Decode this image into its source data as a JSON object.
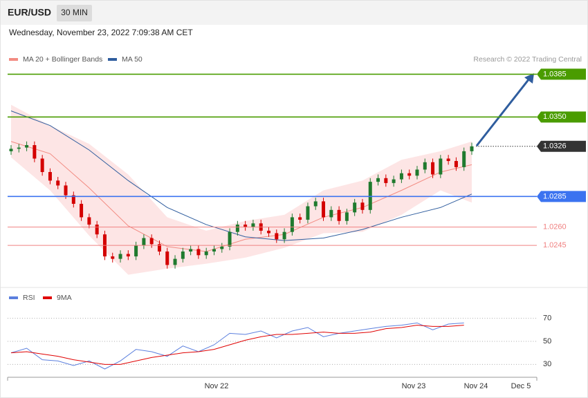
{
  "chart_data": {
    "type": "candlestick",
    "title": "EUR/USD",
    "interval": "30 MIN",
    "timestamp": "Wednesday, November 23, 2022 7:09:38 AM CET",
    "source": "Research © 2022 Trading Central",
    "ylim": [
      1.0214,
      1.0392
    ],
    "up_color": "#1f7a2e",
    "down_color": "#d40000",
    "open": [
      1.0322,
      1.0324,
      1.0325,
      1.0327,
      1.0316,
      1.0305,
      1.0298,
      1.0294,
      1.0286,
      1.0279,
      1.0268,
      1.0262,
      1.0254,
      1.0236,
      1.0234,
      1.0238,
      1.0236,
      1.0245,
      1.0251,
      1.0246,
      1.024,
      1.0229,
      1.0234,
      1.024,
      1.0242,
      1.0237,
      1.024,
      1.0242,
      1.0244,
      1.0256,
      1.0262,
      1.026,
      1.0263,
      1.0257,
      1.0255,
      1.025,
      1.0256,
      1.0268,
      1.0266,
      1.0277,
      1.0281,
      1.0268,
      1.0274,
      1.0265,
      1.0272,
      1.028,
      1.0274,
      1.0297,
      1.03,
      1.0296,
      1.0299,
      1.0304,
      1.0302,
      1.0307,
      1.0313,
      1.0303,
      1.0316,
      1.0314,
      1.0309,
      1.0322
    ],
    "high": [
      1.0327,
      1.0328,
      1.033,
      1.033,
      1.0319,
      1.0308,
      1.0301,
      1.0297,
      1.0289,
      1.0282,
      1.0271,
      1.0265,
      1.0257,
      1.0239,
      1.0241,
      1.0241,
      1.0248,
      1.0254,
      1.0254,
      1.0249,
      1.0243,
      1.0237,
      1.0243,
      1.0245,
      1.0245,
      1.0243,
      1.0245,
      1.0247,
      1.0259,
      1.0265,
      1.0265,
      1.0266,
      1.0266,
      1.026,
      1.0258,
      1.0259,
      1.0271,
      1.0271,
      1.028,
      1.0284,
      1.0284,
      1.0277,
      1.0277,
      1.0275,
      1.0283,
      1.0283,
      1.03,
      1.0303,
      1.0303,
      1.0302,
      1.0307,
      1.0307,
      1.031,
      1.0316,
      1.0316,
      1.0319,
      1.0319,
      1.0317,
      1.0325,
      1.0329
    ],
    "low": [
      1.0319,
      1.0321,
      1.0322,
      1.0313,
      1.0302,
      1.0295,
      1.0291,
      1.0283,
      1.0276,
      1.0265,
      1.0259,
      1.0251,
      1.0233,
      1.0231,
      1.0231,
      1.0233,
      1.0233,
      1.0242,
      1.0243,
      1.0237,
      1.0226,
      1.0226,
      1.0231,
      1.0237,
      1.0234,
      1.0234,
      1.0237,
      1.0239,
      1.0241,
      1.0253,
      1.0257,
      1.0257,
      1.0254,
      1.0252,
      1.0247,
      1.0247,
      1.0253,
      1.0263,
      1.0263,
      1.0274,
      1.0265,
      1.0265,
      1.0262,
      1.0262,
      1.0269,
      1.0271,
      1.0271,
      1.0294,
      1.0293,
      1.0293,
      1.0296,
      1.0299,
      1.0299,
      1.0304,
      1.03,
      1.03,
      1.0311,
      1.0306,
      1.0306,
      1.0319
    ],
    "close": [
      1.0324,
      1.0325,
      1.0327,
      1.0316,
      1.0305,
      1.0298,
      1.0294,
      1.0286,
      1.0279,
      1.0268,
      1.0262,
      1.0254,
      1.0236,
      1.0234,
      1.0238,
      1.0236,
      1.0245,
      1.0251,
      1.0246,
      1.024,
      1.0229,
      1.0234,
      1.024,
      1.0242,
      1.0237,
      1.024,
      1.0242,
      1.0244,
      1.0256,
      1.0262,
      1.026,
      1.0263,
      1.0257,
      1.0255,
      1.025,
      1.0256,
      1.0268,
      1.0266,
      1.0277,
      1.0281,
      1.0268,
      1.0274,
      1.0265,
      1.0272,
      1.028,
      1.0274,
      1.0297,
      1.03,
      1.0296,
      1.0299,
      1.0304,
      1.0302,
      1.0307,
      1.0313,
      1.0303,
      1.0316,
      1.0314,
      1.0309,
      1.0322,
      1.0326
    ],
    "overlays": {
      "legend": [
        {
          "name": "MA 20 + Bollinger Bands",
          "color": "#f28b82"
        },
        {
          "name": "MA 50",
          "color": "#2f5d9e"
        }
      ],
      "x": [
        0,
        5,
        10,
        15,
        20,
        25,
        30,
        35,
        40,
        45,
        50,
        55,
        59
      ],
      "upper": [
        1.036,
        1.0343,
        1.0328,
        1.0303,
        1.0268,
        1.0257,
        1.0265,
        1.027,
        1.029,
        1.0298,
        1.0315,
        1.0322,
        1.033
      ],
      "lower": [
        1.0317,
        1.029,
        1.0253,
        1.0221,
        1.0226,
        1.023,
        1.0235,
        1.0243,
        1.0255,
        1.0256,
        1.027,
        1.029,
        1.028
      ],
      "ma20": [
        1.033,
        1.032,
        1.0292,
        1.0261,
        1.0244,
        1.024,
        1.025,
        1.0254,
        1.0268,
        1.0276,
        1.029,
        1.0305,
        1.0311
      ],
      "ma50": [
        1.0355,
        1.0343,
        1.0323,
        1.0298,
        1.0276,
        1.0262,
        1.0252,
        1.0249,
        1.0251,
        1.0258,
        1.0268,
        1.0276,
        1.0287
      ]
    },
    "levels": [
      {
        "value": 1.0385,
        "color": "#4a9c00",
        "style": "solid",
        "badge": true
      },
      {
        "value": 1.035,
        "label": "1.0350",
        "color": "#4a9c00",
        "style": "solid",
        "badge": true
      },
      {
        "value": 1.0326,
        "color": "#333333",
        "style": "dotted",
        "badge": true
      },
      {
        "value": 1.0285,
        "color": "#3b73f0",
        "style": "solid",
        "badge": true
      },
      {
        "value": 1.026,
        "label": "1.0260",
        "color": "#f08080",
        "style": "solid",
        "badge": false
      },
      {
        "value": 1.0245,
        "color": "#f08080",
        "style": "solid",
        "badge": false
      }
    ],
    "x_labels": [
      "Nov 22",
      "Nov 23",
      "Nov 24",
      "Dec 5"
    ],
    "rsi": {
      "x": [
        0,
        2,
        4,
        6,
        8,
        10,
        12,
        14,
        16,
        18,
        20,
        22,
        24,
        26,
        28,
        30,
        32,
        34,
        36,
        38,
        40,
        42,
        44,
        46,
        48,
        50,
        52,
        54,
        56,
        58
      ],
      "ylim": [
        20,
        80
      ],
      "yticks": [
        30,
        50,
        70
      ],
      "series": [
        {
          "name": "RSI",
          "color": "#5b7fde",
          "values": [
            40,
            44,
            34,
            33,
            29,
            33,
            26,
            33,
            43,
            41,
            37,
            46,
            41,
            47,
            57,
            56,
            59,
            53,
            59,
            62,
            54,
            57,
            59,
            61,
            63,
            64,
            66,
            60,
            65,
            66
          ]
        },
        {
          "name": "9MA",
          "color": "#e00000",
          "values": [
            40,
            41,
            39,
            37,
            34,
            32,
            30,
            30,
            33,
            36,
            38,
            40,
            41,
            43,
            47,
            51,
            54,
            56,
            56,
            57,
            58,
            57,
            57,
            58,
            61,
            62,
            64,
            63,
            63,
            64
          ]
        }
      ]
    }
  }
}
